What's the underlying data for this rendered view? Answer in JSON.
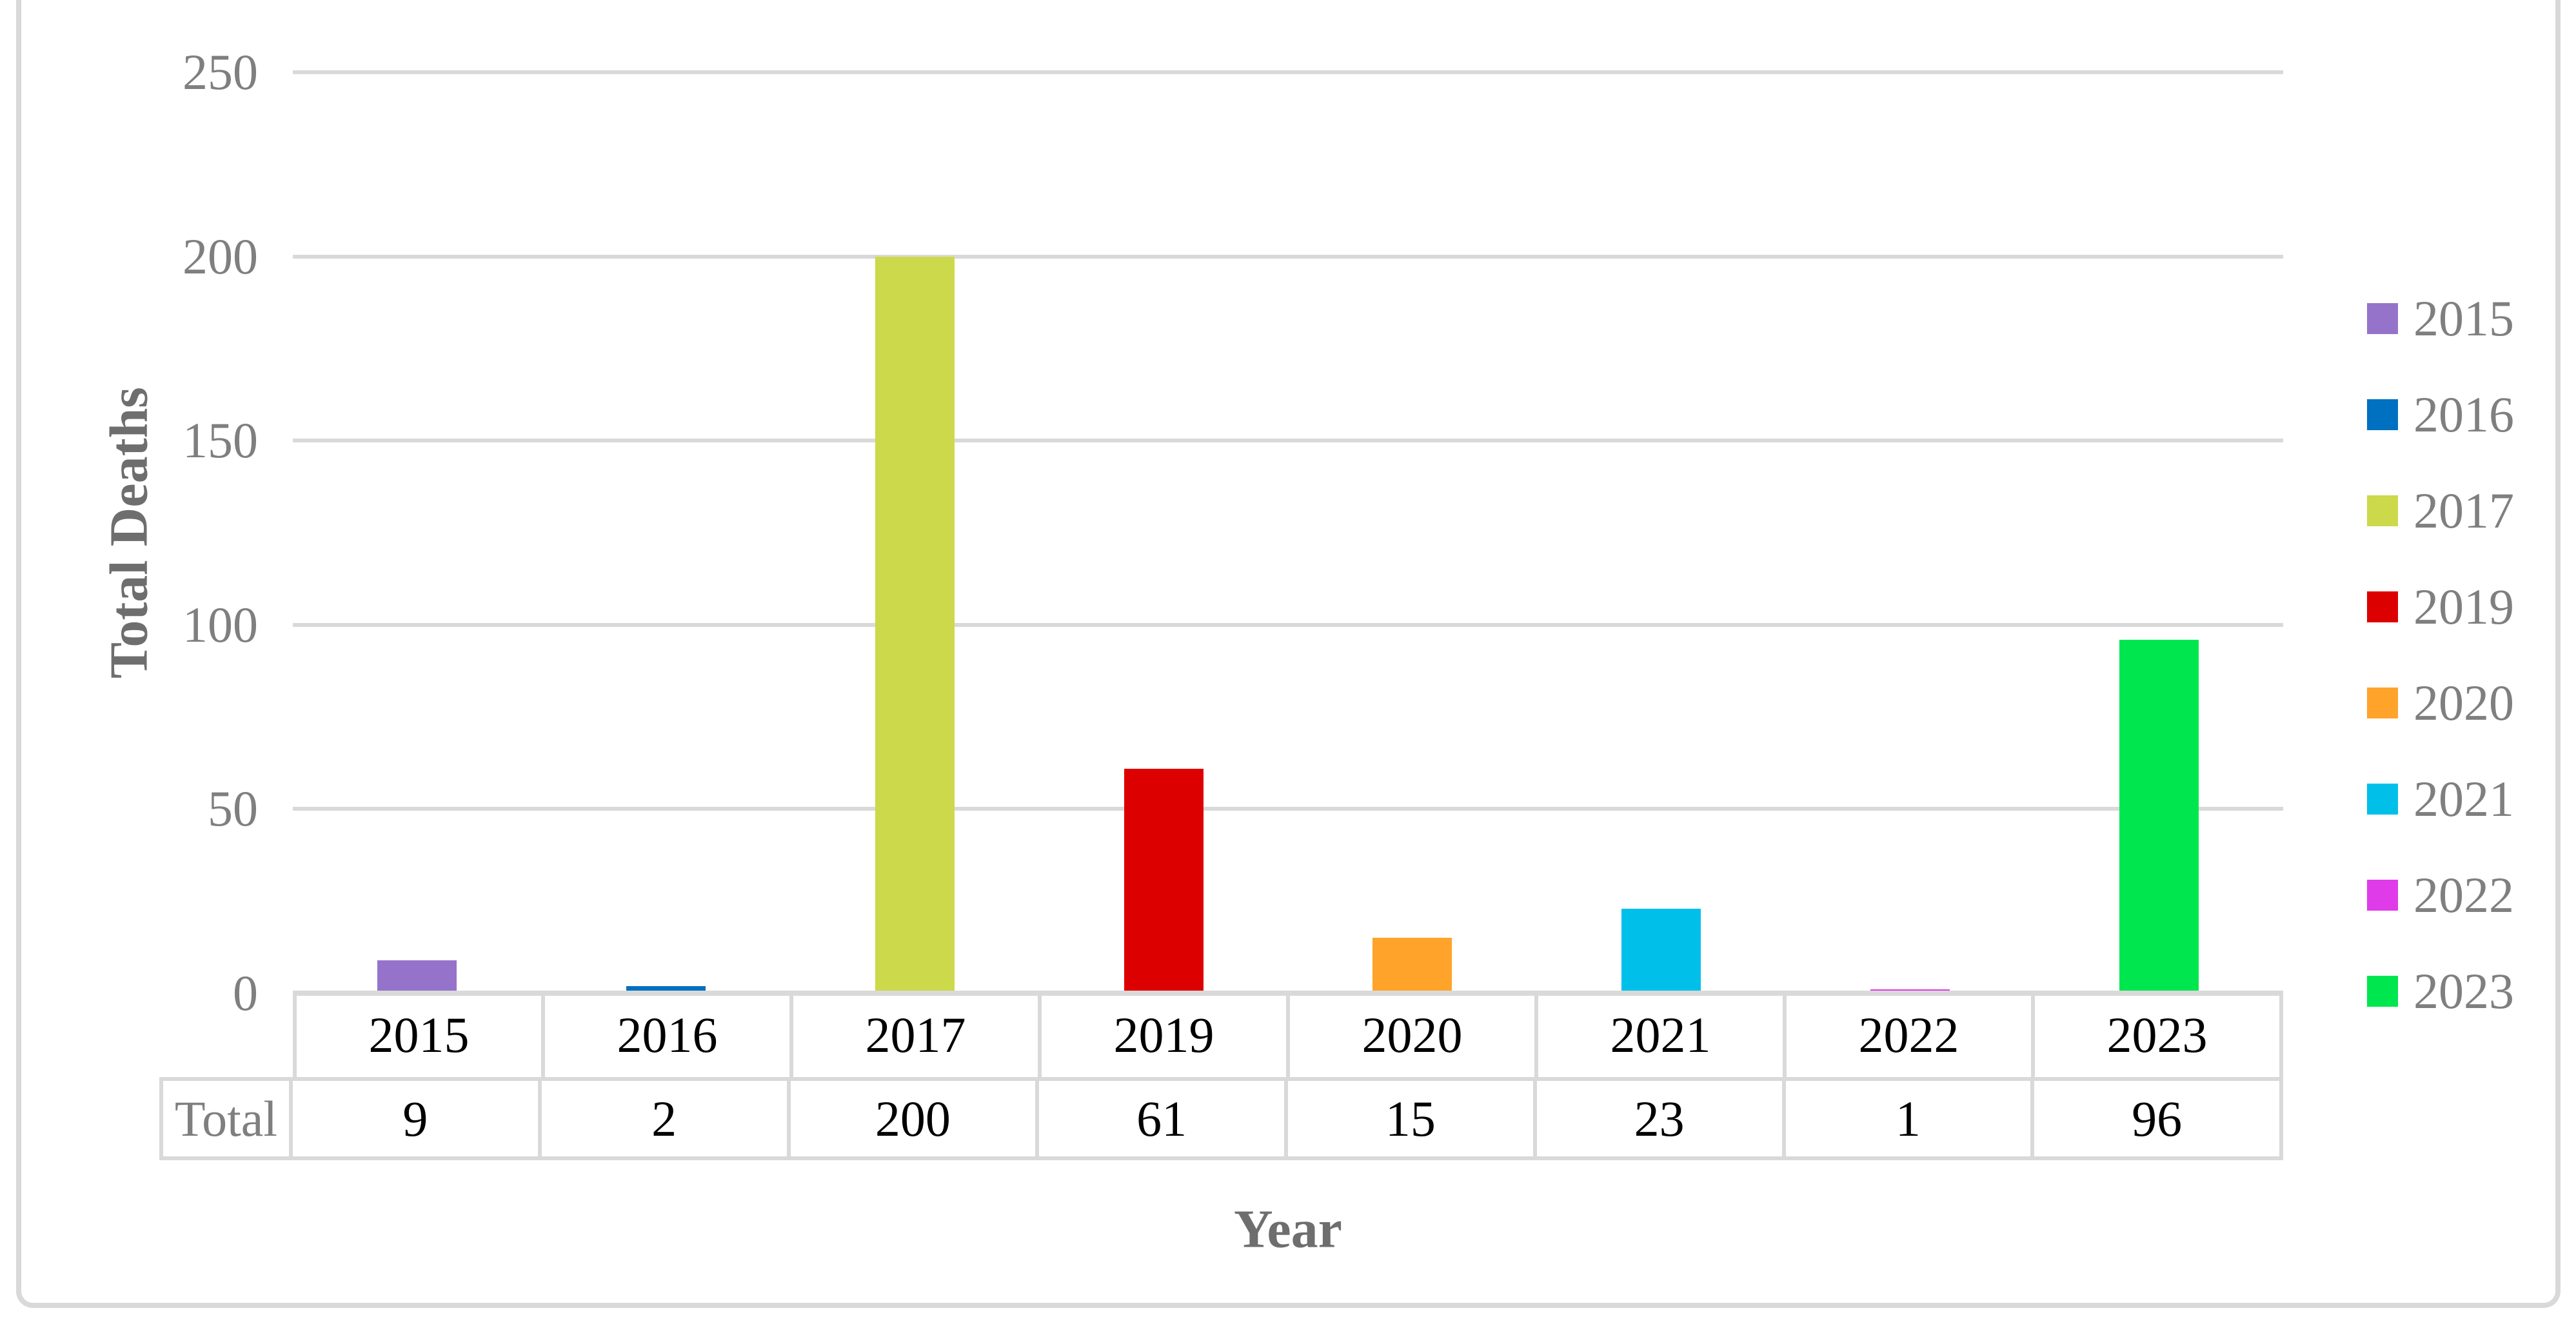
{
  "chart_data": {
    "type": "bar",
    "title": "",
    "categories": [
      "2015",
      "2016",
      "2017",
      "2019",
      "2020",
      "2021",
      "2022",
      "2023"
    ],
    "series": [
      {
        "name": "Total",
        "values": [
          9,
          2,
          200,
          61,
          15,
          23,
          1,
          96
        ]
      }
    ],
    "bar_colors": [
      "#9673CB",
      "#0070C0",
      "#CCD94A",
      "#DD0000",
      "#FFA32B",
      "#00C0EA",
      "#E03BE8",
      "#00E64E"
    ],
    "xlabel": "Year",
    "ylabel": "Total Deaths",
    "ylim": [
      0,
      250
    ],
    "yticks": [
      0,
      50,
      100,
      150,
      200,
      250
    ],
    "grid": true,
    "legend_position": "right",
    "legend_items": [
      {
        "label": "2015",
        "color": "#9673CB"
      },
      {
        "label": "2016",
        "color": "#0070C0"
      },
      {
        "label": "2017",
        "color": "#CCD94A"
      },
      {
        "label": "2019",
        "color": "#DD0000"
      },
      {
        "label": "2020",
        "color": "#FFA32B"
      },
      {
        "label": "2021",
        "color": "#00C0EA"
      },
      {
        "label": "2022",
        "color": "#E03BE8"
      },
      {
        "label": "2023",
        "color": "#00E64E"
      }
    ],
    "data_table": {
      "row_header": "Total",
      "column_headers": [
        "2015",
        "2016",
        "2017",
        "2019",
        "2020",
        "2021",
        "2022",
        "2023"
      ],
      "values": [
        "9",
        "2",
        "200",
        "61",
        "15",
        "23",
        "1",
        "96"
      ]
    }
  },
  "colors": {
    "gridline": "#D9D9D9",
    "axis_line": "#D9D9D9",
    "table_border": "#D9D9D9",
    "tick_text": "#7F7F7F",
    "title_text": "#6E6E6E",
    "background": "#FFFFFF"
  }
}
